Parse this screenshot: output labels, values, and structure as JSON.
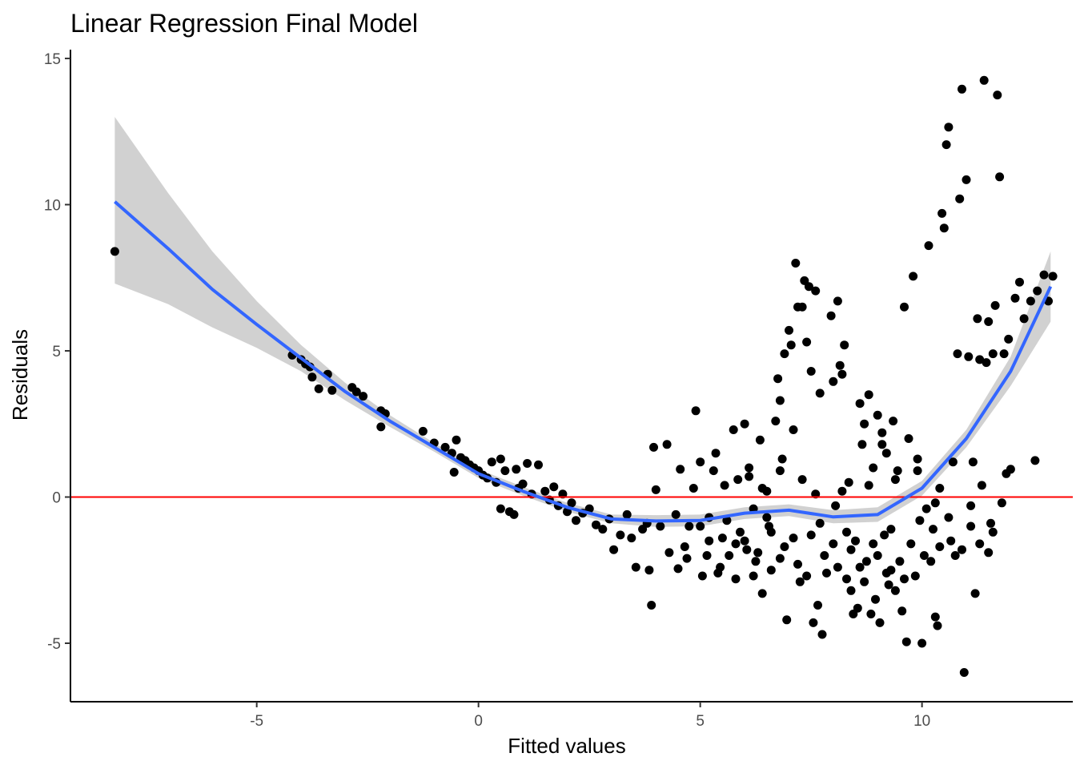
{
  "chart_data": {
    "type": "scatter",
    "title": "Linear Regression Final Model",
    "xlabel": "Fitted values",
    "ylabel": "Residuals",
    "xlim": [
      -9.2,
      13.4
    ],
    "ylim": [
      -7.0,
      15.3
    ],
    "x_ticks": [
      -5,
      0,
      5,
      10
    ],
    "x_tick_labels": [
      "-5",
      "0",
      "5",
      "10"
    ],
    "y_ticks": [
      -5,
      0,
      5,
      10,
      15
    ],
    "y_tick_labels": [
      "-5",
      "0",
      "5",
      "10",
      "15"
    ],
    "grid": false,
    "reference_line": {
      "y": 0,
      "color": "#ff0000"
    },
    "smooth_color": "#3366ff",
    "band_color": "#bebebe",
    "point_color": "#000000",
    "smooth": [
      {
        "x": -8.2,
        "y": 10.1
      },
      {
        "x": -7.0,
        "y": 8.5
      },
      {
        "x": -6.0,
        "y": 7.1
      },
      {
        "x": -5.0,
        "y": 5.9
      },
      {
        "x": -4.0,
        "y": 4.75
      },
      {
        "x": -3.0,
        "y": 3.6
      },
      {
        "x": -2.0,
        "y": 2.6
      },
      {
        "x": -1.0,
        "y": 1.7
      },
      {
        "x": 0.0,
        "y": 0.8
      },
      {
        "x": 1.0,
        "y": 0.2
      },
      {
        "x": 2.0,
        "y": -0.35
      },
      {
        "x": 3.0,
        "y": -0.75
      },
      {
        "x": 4.0,
        "y": -0.82
      },
      {
        "x": 5.0,
        "y": -0.8
      },
      {
        "x": 6.0,
        "y": -0.55
      },
      {
        "x": 7.0,
        "y": -0.45
      },
      {
        "x": 8.0,
        "y": -0.68
      },
      {
        "x": 9.0,
        "y": -0.6
      },
      {
        "x": 10.0,
        "y": 0.3
      },
      {
        "x": 11.0,
        "y": 2.0
      },
      {
        "x": 12.0,
        "y": 4.3
      },
      {
        "x": 12.9,
        "y": 7.2
      }
    ],
    "band_upper": [
      {
        "x": -8.2,
        "y": 13.0
      },
      {
        "x": -7.0,
        "y": 10.4
      },
      {
        "x": -6.0,
        "y": 8.4
      },
      {
        "x": -5.0,
        "y": 6.7
      },
      {
        "x": -4.0,
        "y": 5.2
      },
      {
        "x": -3.0,
        "y": 3.9
      },
      {
        "x": -2.0,
        "y": 2.8
      },
      {
        "x": -1.0,
        "y": 1.85
      },
      {
        "x": 0.0,
        "y": 0.95
      },
      {
        "x": 1.0,
        "y": 0.35
      },
      {
        "x": 2.0,
        "y": -0.2
      },
      {
        "x": 3.0,
        "y": -0.6
      },
      {
        "x": 4.0,
        "y": -0.62
      },
      {
        "x": 5.0,
        "y": -0.6
      },
      {
        "x": 6.0,
        "y": -0.35
      },
      {
        "x": 7.0,
        "y": -0.25
      },
      {
        "x": 8.0,
        "y": -0.45
      },
      {
        "x": 9.0,
        "y": -0.35
      },
      {
        "x": 10.0,
        "y": 0.55
      },
      {
        "x": 11.0,
        "y": 2.3
      },
      {
        "x": 12.0,
        "y": 4.8
      },
      {
        "x": 12.9,
        "y": 8.4
      }
    ],
    "band_lower": [
      {
        "x": -8.2,
        "y": 7.3
      },
      {
        "x": -7.0,
        "y": 6.6
      },
      {
        "x": -6.0,
        "y": 5.8
      },
      {
        "x": -5.0,
        "y": 5.1
      },
      {
        "x": -4.0,
        "y": 4.3
      },
      {
        "x": -3.0,
        "y": 3.3
      },
      {
        "x": -2.0,
        "y": 2.4
      },
      {
        "x": -1.0,
        "y": 1.55
      },
      {
        "x": 0.0,
        "y": 0.65
      },
      {
        "x": 1.0,
        "y": 0.05
      },
      {
        "x": 2.0,
        "y": -0.5
      },
      {
        "x": 3.0,
        "y": -0.9
      },
      {
        "x": 4.0,
        "y": -1.02
      },
      {
        "x": 5.0,
        "y": -1.0
      },
      {
        "x": 6.0,
        "y": -0.75
      },
      {
        "x": 7.0,
        "y": -0.65
      },
      {
        "x": 8.0,
        "y": -0.9
      },
      {
        "x": 9.0,
        "y": -0.85
      },
      {
        "x": 10.0,
        "y": 0.05
      },
      {
        "x": 11.0,
        "y": 1.7
      },
      {
        "x": 12.0,
        "y": 3.8
      },
      {
        "x": 12.9,
        "y": 6.0
      }
    ],
    "points": [
      {
        "x": -8.2,
        "y": 8.4
      },
      {
        "x": -4.2,
        "y": 4.85
      },
      {
        "x": -4.0,
        "y": 4.7
      },
      {
        "x": -3.9,
        "y": 4.55
      },
      {
        "x": -3.8,
        "y": 4.45
      },
      {
        "x": -3.75,
        "y": 4.1
      },
      {
        "x": -3.6,
        "y": 3.7
      },
      {
        "x": -3.4,
        "y": 4.2
      },
      {
        "x": -3.3,
        "y": 3.65
      },
      {
        "x": -2.85,
        "y": 3.75
      },
      {
        "x": -2.75,
        "y": 3.6
      },
      {
        "x": -2.6,
        "y": 3.45
      },
      {
        "x": -2.2,
        "y": 2.95
      },
      {
        "x": -2.1,
        "y": 2.85
      },
      {
        "x": -2.2,
        "y": 2.4
      },
      {
        "x": -1.25,
        "y": 2.25
      },
      {
        "x": -1.0,
        "y": 1.85
      },
      {
        "x": -0.75,
        "y": 1.7
      },
      {
        "x": -0.6,
        "y": 1.5
      },
      {
        "x": -0.55,
        "y": 0.85
      },
      {
        "x": -0.5,
        "y": 1.95
      },
      {
        "x": -0.4,
        "y": 1.35
      },
      {
        "x": -0.3,
        "y": 1.25
      },
      {
        "x": -0.2,
        "y": 1.1
      },
      {
        "x": -0.1,
        "y": 1.0
      },
      {
        "x": 0.0,
        "y": 0.9
      },
      {
        "x": 0.1,
        "y": 0.75
      },
      {
        "x": 0.2,
        "y": 0.65
      },
      {
        "x": 0.3,
        "y": 1.2
      },
      {
        "x": 0.4,
        "y": 0.5
      },
      {
        "x": 0.5,
        "y": 1.3
      },
      {
        "x": 0.5,
        "y": -0.4
      },
      {
        "x": 0.6,
        "y": 0.9
      },
      {
        "x": 0.7,
        "y": -0.5
      },
      {
        "x": 0.8,
        "y": -0.6
      },
      {
        "x": 0.85,
        "y": 0.95
      },
      {
        "x": 0.9,
        "y": 0.3
      },
      {
        "x": 1.0,
        "y": 0.45
      },
      {
        "x": 1.1,
        "y": 1.15
      },
      {
        "x": 1.2,
        "y": 0.1
      },
      {
        "x": 1.35,
        "y": 1.1
      },
      {
        "x": 1.5,
        "y": 0.2
      },
      {
        "x": 1.6,
        "y": -0.1
      },
      {
        "x": 1.7,
        "y": 0.35
      },
      {
        "x": 1.8,
        "y": -0.3
      },
      {
        "x": 1.9,
        "y": 0.1
      },
      {
        "x": 2.0,
        "y": -0.5
      },
      {
        "x": 2.1,
        "y": -0.2
      },
      {
        "x": 2.2,
        "y": -0.8
      },
      {
        "x": 2.35,
        "y": -0.55
      },
      {
        "x": 2.5,
        "y": -0.4
      },
      {
        "x": 2.65,
        "y": -0.95
      },
      {
        "x": 2.8,
        "y": -1.1
      },
      {
        "x": 2.95,
        "y": -0.75
      },
      {
        "x": 3.05,
        "y": -1.8
      },
      {
        "x": 3.2,
        "y": -1.3
      },
      {
        "x": 3.35,
        "y": -0.6
      },
      {
        "x": 3.45,
        "y": -1.4
      },
      {
        "x": 3.55,
        "y": -2.4
      },
      {
        "x": 3.7,
        "y": -1.1
      },
      {
        "x": 3.8,
        "y": -0.9
      },
      {
        "x": 3.85,
        "y": -2.5
      },
      {
        "x": 3.9,
        "y": -3.7
      },
      {
        "x": 3.95,
        "y": 1.7
      },
      {
        "x": 4.0,
        "y": 0.25
      },
      {
        "x": 4.1,
        "y": -1.0
      },
      {
        "x": 4.25,
        "y": 1.8
      },
      {
        "x": 4.3,
        "y": -1.9
      },
      {
        "x": 4.45,
        "y": -0.6
      },
      {
        "x": 4.5,
        "y": -2.45
      },
      {
        "x": 4.55,
        "y": 0.95
      },
      {
        "x": 4.65,
        "y": -1.7
      },
      {
        "x": 4.75,
        "y": -1.0
      },
      {
        "x": 4.85,
        "y": 0.3
      },
      {
        "x": 4.9,
        "y": 2.95
      },
      {
        "x": 5.0,
        "y": 1.2
      },
      {
        "x": 5.05,
        "y": -2.7
      },
      {
        "x": 5.15,
        "y": -2.0
      },
      {
        "x": 5.2,
        "y": -0.7
      },
      {
        "x": 5.3,
        "y": 0.9
      },
      {
        "x": 5.35,
        "y": 1.5
      },
      {
        "x": 5.45,
        "y": -2.4
      },
      {
        "x": 5.5,
        "y": -1.4
      },
      {
        "x": 5.55,
        "y": 0.4
      },
      {
        "x": 5.65,
        "y": -2.0
      },
      {
        "x": 5.75,
        "y": 2.3
      },
      {
        "x": 5.8,
        "y": -2.8
      },
      {
        "x": 5.85,
        "y": 0.6
      },
      {
        "x": 5.9,
        "y": -1.2
      },
      {
        "x": 6.0,
        "y": 2.5
      },
      {
        "x": 6.05,
        "y": -1.8
      },
      {
        "x": 6.1,
        "y": 1.0
      },
      {
        "x": 6.2,
        "y": -0.4
      },
      {
        "x": 6.25,
        "y": -2.2
      },
      {
        "x": 6.35,
        "y": 1.95
      },
      {
        "x": 6.4,
        "y": -3.3
      },
      {
        "x": 6.5,
        "y": 0.2
      },
      {
        "x": 6.55,
        "y": -1.0
      },
      {
        "x": 6.6,
        "y": -2.5
      },
      {
        "x": 6.7,
        "y": 2.6
      },
      {
        "x": 6.75,
        "y": 4.05
      },
      {
        "x": 6.8,
        "y": 3.3
      },
      {
        "x": 6.85,
        "y": 1.3
      },
      {
        "x": 6.9,
        "y": 4.9
      },
      {
        "x": 6.95,
        "y": -4.2
      },
      {
        "x": 7.0,
        "y": 5.7
      },
      {
        "x": 7.05,
        "y": 5.2
      },
      {
        "x": 7.1,
        "y": 2.3
      },
      {
        "x": 7.15,
        "y": 8.0
      },
      {
        "x": 7.2,
        "y": 6.5
      },
      {
        "x": 7.25,
        "y": -2.9
      },
      {
        "x": 7.3,
        "y": 6.5
      },
      {
        "x": 7.35,
        "y": 7.4
      },
      {
        "x": 7.4,
        "y": 5.3
      },
      {
        "x": 7.45,
        "y": 7.2
      },
      {
        "x": 7.5,
        "y": 4.3
      },
      {
        "x": 7.55,
        "y": -4.3
      },
      {
        "x": 7.6,
        "y": 7.05
      },
      {
        "x": 7.65,
        "y": -3.7
      },
      {
        "x": 7.7,
        "y": 3.55
      },
      {
        "x": 7.75,
        "y": -4.7
      },
      {
        "x": 7.85,
        "y": -2.6
      },
      {
        "x": 7.95,
        "y": 6.2
      },
      {
        "x": 8.0,
        "y": 3.95
      },
      {
        "x": 8.05,
        "y": -0.3
      },
      {
        "x": 8.1,
        "y": 6.7
      },
      {
        "x": 8.15,
        "y": 4.5
      },
      {
        "x": 8.2,
        "y": 4.2
      },
      {
        "x": 8.25,
        "y": 5.2
      },
      {
        "x": 8.3,
        "y": -2.8
      },
      {
        "x": 8.35,
        "y": 0.5
      },
      {
        "x": 8.4,
        "y": -3.2
      },
      {
        "x": 8.45,
        "y": -4.0
      },
      {
        "x": 8.5,
        "y": -1.5
      },
      {
        "x": 8.55,
        "y": -3.8
      },
      {
        "x": 8.6,
        "y": 3.2
      },
      {
        "x": 8.65,
        "y": 1.8
      },
      {
        "x": 8.7,
        "y": 2.5
      },
      {
        "x": 8.75,
        "y": -2.2
      },
      {
        "x": 8.8,
        "y": 3.5
      },
      {
        "x": 8.85,
        "y": -4.0
      },
      {
        "x": 8.9,
        "y": 1.0
      },
      {
        "x": 8.95,
        "y": -3.5
      },
      {
        "x": 9.0,
        "y": 2.8
      },
      {
        "x": 9.05,
        "y": -4.3
      },
      {
        "x": 9.1,
        "y": 2.2
      },
      {
        "x": 9.15,
        "y": -1.3
      },
      {
        "x": 9.2,
        "y": 1.5
      },
      {
        "x": 9.25,
        "y": -3.0
      },
      {
        "x": 9.3,
        "y": -2.5
      },
      {
        "x": 9.35,
        "y": 2.6
      },
      {
        "x": 9.4,
        "y": -3.2
      },
      {
        "x": 9.45,
        "y": 0.9
      },
      {
        "x": 9.5,
        "y": -2.2
      },
      {
        "x": 9.55,
        "y": -3.9
      },
      {
        "x": 9.6,
        "y": 6.5
      },
      {
        "x": 9.65,
        "y": -4.95
      },
      {
        "x": 9.7,
        "y": 2.0
      },
      {
        "x": 9.75,
        "y": -1.6
      },
      {
        "x": 9.8,
        "y": 7.55
      },
      {
        "x": 9.85,
        "y": -2.7
      },
      {
        "x": 9.9,
        "y": 1.3
      },
      {
        "x": 9.95,
        "y": -0.8
      },
      {
        "x": 10.0,
        "y": -5.0
      },
      {
        "x": 10.05,
        "y": -2.0
      },
      {
        "x": 10.1,
        "y": -0.4
      },
      {
        "x": 10.15,
        "y": 8.6
      },
      {
        "x": 10.2,
        "y": -2.2
      },
      {
        "x": 10.25,
        "y": -1.1
      },
      {
        "x": 10.3,
        "y": -4.1
      },
      {
        "x": 10.35,
        "y": -4.4
      },
      {
        "x": 10.4,
        "y": 0.3
      },
      {
        "x": 10.45,
        "y": 9.7
      },
      {
        "x": 10.5,
        "y": 9.2
      },
      {
        "x": 10.55,
        "y": 12.05
      },
      {
        "x": 10.6,
        "y": 12.65
      },
      {
        "x": 10.65,
        "y": -1.5
      },
      {
        "x": 10.7,
        "y": 1.2
      },
      {
        "x": 10.75,
        "y": -2.0
      },
      {
        "x": 10.8,
        "y": 4.9
      },
      {
        "x": 10.85,
        "y": 10.2
      },
      {
        "x": 10.9,
        "y": 13.95
      },
      {
        "x": 10.95,
        "y": -6.0
      },
      {
        "x": 11.0,
        "y": 10.85
      },
      {
        "x": 11.05,
        "y": 4.8
      },
      {
        "x": 11.1,
        "y": -1.0
      },
      {
        "x": 11.15,
        "y": 1.2
      },
      {
        "x": 11.2,
        "y": -3.3
      },
      {
        "x": 11.25,
        "y": 6.1
      },
      {
        "x": 11.3,
        "y": 4.7
      },
      {
        "x": 11.35,
        "y": 0.4
      },
      {
        "x": 11.4,
        "y": 14.25
      },
      {
        "x": 11.45,
        "y": 4.6
      },
      {
        "x": 11.5,
        "y": 6.0
      },
      {
        "x": 11.55,
        "y": -0.9
      },
      {
        "x": 11.6,
        "y": 4.9
      },
      {
        "x": 11.65,
        "y": 6.55
      },
      {
        "x": 11.7,
        "y": 13.75
      },
      {
        "x": 11.75,
        "y": 10.95
      },
      {
        "x": 11.8,
        "y": -0.2
      },
      {
        "x": 11.85,
        "y": 4.9
      },
      {
        "x": 11.9,
        "y": 0.8
      },
      {
        "x": 11.95,
        "y": 5.4
      },
      {
        "x": 12.0,
        "y": 0.95
      },
      {
        "x": 12.1,
        "y": 6.8
      },
      {
        "x": 12.2,
        "y": 7.35
      },
      {
        "x": 12.3,
        "y": 6.1
      },
      {
        "x": 12.45,
        "y": 6.7
      },
      {
        "x": 12.55,
        "y": 1.25
      },
      {
        "x": 12.6,
        "y": 7.05
      },
      {
        "x": 12.75,
        "y": 7.6
      },
      {
        "x": 12.85,
        "y": 6.7
      },
      {
        "x": 12.95,
        "y": 7.55
      },
      {
        "x": 5.2,
        "y": -1.5
      },
      {
        "x": 5.6,
        "y": -0.8
      },
      {
        "x": 6.0,
        "y": -1.5
      },
      {
        "x": 6.3,
        "y": -1.9
      },
      {
        "x": 6.6,
        "y": -1.2
      },
      {
        "x": 6.9,
        "y": -1.7
      },
      {
        "x": 7.2,
        "y": -2.3
      },
      {
        "x": 7.5,
        "y": -1.3
      },
      {
        "x": 7.8,
        "y": -2.0
      },
      {
        "x": 8.1,
        "y": -2.4
      },
      {
        "x": 8.4,
        "y": -1.8
      },
      {
        "x": 8.7,
        "y": -2.9
      },
      {
        "x": 9.0,
        "y": -2.0
      },
      {
        "x": 9.3,
        "y": -1.1
      },
      {
        "x": 9.6,
        "y": -2.8
      },
      {
        "x": 4.7,
        "y": -2.1
      },
      {
        "x": 5.0,
        "y": -1.0
      },
      {
        "x": 5.4,
        "y": -2.6
      },
      {
        "x": 5.8,
        "y": -1.6
      },
      {
        "x": 6.2,
        "y": -2.7
      },
      {
        "x": 6.5,
        "y": -0.7
      },
      {
        "x": 6.8,
        "y": -2.1
      },
      {
        "x": 7.1,
        "y": -1.4
      },
      {
        "x": 7.4,
        "y": -2.7
      },
      {
        "x": 7.7,
        "y": -0.9
      },
      {
        "x": 8.0,
        "y": -1.6
      },
      {
        "x": 8.3,
        "y": -1.2
      },
      {
        "x": 8.6,
        "y": -2.4
      },
      {
        "x": 8.9,
        "y": -1.6
      },
      {
        "x": 9.2,
        "y": -2.6
      },
      {
        "x": 6.1,
        "y": 0.7
      },
      {
        "x": 6.4,
        "y": 0.3
      },
      {
        "x": 6.8,
        "y": 0.9
      },
      {
        "x": 7.3,
        "y": 0.6
      },
      {
        "x": 7.6,
        "y": 0.1
      },
      {
        "x": 8.2,
        "y": 0.2
      },
      {
        "x": 8.8,
        "y": 0.4
      },
      {
        "x": 9.1,
        "y": 1.8
      },
      {
        "x": 9.4,
        "y": 0.6
      },
      {
        "x": 9.9,
        "y": 0.9
      },
      {
        "x": 10.3,
        "y": -0.2
      },
      {
        "x": 10.6,
        "y": -0.7
      },
      {
        "x": 11.3,
        "y": -1.6
      },
      {
        "x": 11.5,
        "y": -1.9
      },
      {
        "x": 11.6,
        "y": -1.2
      },
      {
        "x": 10.9,
        "y": -1.8
      },
      {
        "x": 11.1,
        "y": -0.3
      },
      {
        "x": 10.4,
        "y": -1.7
      }
    ]
  }
}
